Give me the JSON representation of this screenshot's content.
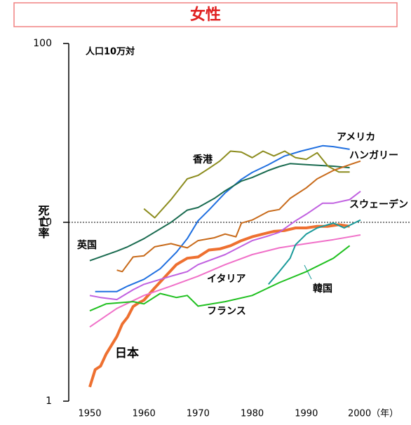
{
  "chart_data": {
    "type": "line",
    "title": "女性",
    "ylabel": "死亡率",
    "unit_note": "人口10万対",
    "log_scale": true,
    "reference_line": 10,
    "xlim": [
      1950,
      2000
    ],
    "xticks": [
      1950,
      1960,
      1970,
      1980,
      1990,
      {
        "value": 2000,
        "label": "2000（年）"
      }
    ],
    "ylim": [
      1,
      100
    ],
    "yticks": [
      1,
      10,
      100
    ],
    "series": [
      {
        "name": "日本",
        "color": "#ee7030",
        "x": [
          1950,
          1951,
          1952,
          1953,
          1955,
          1956,
          1957,
          1958,
          1959,
          1960,
          1962,
          1964,
          1966,
          1968,
          1970,
          1972,
          1974,
          1976,
          1978,
          1980,
          1982,
          1984,
          1986,
          1988,
          1990,
          1992,
          1994,
          1996,
          1998
        ],
        "values": [
          1.2,
          1.5,
          1.57,
          1.83,
          2.3,
          2.7,
          2.95,
          3.38,
          3.54,
          3.67,
          4.3,
          5.0,
          5.8,
          6.3,
          6.4,
          7.0,
          7.1,
          7.4,
          7.9,
          8.3,
          8.6,
          8.9,
          9.0,
          9.3,
          9.3,
          9.5,
          9.5,
          9.7,
          9.5
        ]
      },
      {
        "name": "アメリカ",
        "color": "#1f6fe0",
        "x": [
          1951,
          1955,
          1957,
          1960,
          1963,
          1966,
          1968,
          1970,
          1972,
          1975,
          1978,
          1980,
          1983,
          1986,
          1989,
          1993,
          1995,
          1998
        ],
        "values": [
          4.1,
          4.1,
          4.4,
          4.8,
          5.5,
          6.8,
          8.1,
          10.2,
          11.7,
          14.6,
          17.4,
          19,
          21,
          23.5,
          25,
          26.8,
          26.5,
          25.6
        ]
      },
      {
        "name": "英国",
        "color": "#1a6b50",
        "x": [
          1950,
          1955,
          1957,
          1960,
          1965,
          1968,
          1970,
          1973,
          1975,
          1978,
          1980,
          1983,
          1985,
          1987,
          1990,
          1995,
          1998
        ],
        "values": [
          6.1,
          6.9,
          7.3,
          8.1,
          10,
          11.7,
          12.1,
          13.6,
          15,
          17,
          17.8,
          19.5,
          20.5,
          21.3,
          21,
          20.6,
          20.2
        ]
      },
      {
        "name": "香港",
        "color": "#8c8c1e",
        "x": [
          1960,
          1962,
          1965,
          1968,
          1970,
          1972,
          1974,
          1976,
          1978,
          1980,
          1982,
          1984,
          1986,
          1988,
          1990,
          1992,
          1994,
          1996,
          1998
        ],
        "values": [
          11.9,
          10.6,
          13.4,
          17.5,
          18.3,
          20,
          22,
          25,
          24.7,
          23,
          25,
          23.5,
          25,
          23,
          22.5,
          24.5,
          20.6,
          19.1,
          19.1
        ]
      },
      {
        "name": "ハンガリー",
        "color": "#c86a1a",
        "x": [
          1955,
          1956,
          1958,
          1960,
          1962,
          1965,
          1968,
          1970,
          1973,
          1975,
          1977,
          1978,
          1980,
          1983,
          1985,
          1987,
          1990,
          1992,
          1995,
          1998,
          2000
        ],
        "values": [
          5.4,
          5.3,
          6.4,
          6.5,
          7.3,
          7.6,
          7.2,
          7.9,
          8.2,
          8.6,
          8.3,
          9.9,
          10.3,
          11.5,
          11.8,
          13.6,
          15.6,
          17.5,
          19.5,
          21,
          22
        ]
      },
      {
        "name": "スウェーデン",
        "color": "#c060e0",
        "x": [
          1950,
          1952,
          1955,
          1958,
          1960,
          1965,
          1968,
          1970,
          1975,
          1980,
          1983,
          1985,
          1988,
          1990,
          1993,
          1995,
          1998,
          2000
        ],
        "values": [
          3.9,
          3.8,
          3.7,
          4.2,
          4.5,
          5.0,
          5.3,
          5.8,
          6.6,
          7.9,
          8.4,
          8.8,
          10.2,
          11.1,
          12.8,
          12.8,
          13.4,
          14.9
        ]
      },
      {
        "name": "イタリア",
        "color": "#f070c8",
        "x": [
          1950,
          1955,
          1960,
          1965,
          1970,
          1975,
          1980,
          1985,
          1990,
          1995,
          2000
        ],
        "values": [
          2.6,
          3.3,
          3.9,
          4.4,
          5.0,
          5.8,
          6.6,
          7.2,
          7.6,
          8.0,
          8.5
        ]
      },
      {
        "name": "フランス",
        "color": "#20c020",
        "x": [
          1950,
          1953,
          1958,
          1960,
          1963,
          1966,
          1968,
          1970,
          1975,
          1980,
          1985,
          1990,
          1995,
          1998
        ],
        "values": [
          3.2,
          3.5,
          3.6,
          3.5,
          4.0,
          3.8,
          3.9,
          3.4,
          3.6,
          3.9,
          4.6,
          5.3,
          6.3,
          7.4
        ]
      },
      {
        "name": "韓国",
        "color": "#1a9a9a",
        "x": [
          1983,
          1985,
          1987,
          1988,
          1990,
          1992,
          1995,
          1997,
          2000
        ],
        "values": [
          4.5,
          5.3,
          6.3,
          7.5,
          8.6,
          9.3,
          9.9,
          9.3,
          10.3
        ]
      }
    ]
  }
}
